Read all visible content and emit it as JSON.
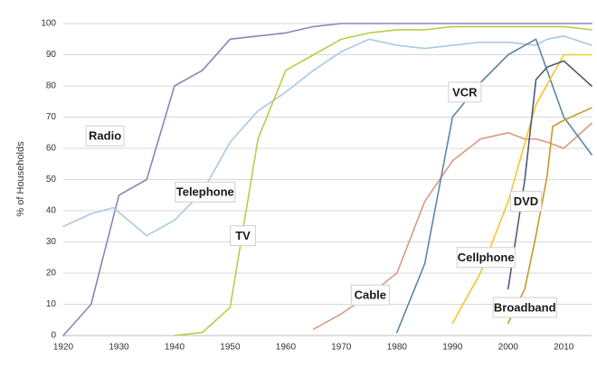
{
  "chart_data": {
    "type": "line",
    "title": "",
    "xlabel": "",
    "ylabel": "% of Households",
    "xlim": [
      1920,
      2015
    ],
    "ylim": [
      0,
      100
    ],
    "xticks": [
      1920,
      1930,
      1940,
      1950,
      1960,
      1970,
      1980,
      1990,
      2000,
      2010
    ],
    "yticks": [
      0,
      10,
      20,
      30,
      40,
      50,
      60,
      70,
      80,
      90,
      100
    ],
    "grid": true,
    "legend": "inline labels",
    "series": [
      {
        "name": "Radio",
        "color": "#8a86b8",
        "points": [
          [
            1920,
            0
          ],
          [
            1925,
            10
          ],
          [
            1930,
            45
          ],
          [
            1935,
            50
          ],
          [
            1940,
            80
          ],
          [
            1945,
            85
          ],
          [
            1950,
            95
          ],
          [
            1955,
            96
          ],
          [
            1960,
            97
          ],
          [
            1965,
            99
          ],
          [
            1970,
            100
          ],
          [
            1980,
            100
          ],
          [
            1990,
            100
          ],
          [
            2000,
            100
          ],
          [
            2010,
            100
          ],
          [
            2015,
            100
          ]
        ]
      },
      {
        "name": "Telephone",
        "color": "#a9c9e3",
        "points": [
          [
            1920,
            35
          ],
          [
            1925,
            39
          ],
          [
            1929,
            41
          ],
          [
            1935,
            32
          ],
          [
            1940,
            37
          ],
          [
            1945,
            46
          ],
          [
            1950,
            62
          ],
          [
            1955,
            72
          ],
          [
            1960,
            78
          ],
          [
            1965,
            85
          ],
          [
            1970,
            91
          ],
          [
            1975,
            95
          ],
          [
            1980,
            93
          ],
          [
            1985,
            92
          ],
          [
            1990,
            93
          ],
          [
            1995,
            94
          ],
          [
            2000,
            94
          ],
          [
            2005,
            93
          ],
          [
            2007,
            95
          ],
          [
            2010,
            96
          ],
          [
            2015,
            93
          ]
        ]
      },
      {
        "name": "TV",
        "color": "#b5cf49",
        "points": [
          [
            1940,
            0
          ],
          [
            1945,
            1
          ],
          [
            1950,
            9
          ],
          [
            1955,
            63
          ],
          [
            1960,
            85
          ],
          [
            1965,
            90
          ],
          [
            1970,
            95
          ],
          [
            1975,
            97
          ],
          [
            1980,
            98
          ],
          [
            1985,
            98
          ],
          [
            1990,
            99
          ],
          [
            2000,
            99
          ],
          [
            2010,
            99
          ],
          [
            2015,
            98
          ]
        ]
      },
      {
        "name": "Cable",
        "color": "#d89a84",
        "points": [
          [
            1965,
            2
          ],
          [
            1970,
            7
          ],
          [
            1975,
            13
          ],
          [
            1980,
            20
          ],
          [
            1985,
            43
          ],
          [
            1990,
            56
          ],
          [
            1995,
            63
          ],
          [
            2000,
            65
          ],
          [
            2003,
            63
          ],
          [
            2005,
            63
          ],
          [
            2007,
            62
          ],
          [
            2010,
            60
          ],
          [
            2015,
            68
          ]
        ]
      },
      {
        "name": "VCR",
        "color": "#5e87a8",
        "points": [
          [
            1980,
            1
          ],
          [
            1985,
            23
          ],
          [
            1990,
            70
          ],
          [
            1995,
            81
          ],
          [
            2000,
            90
          ],
          [
            2005,
            95
          ],
          [
            2007,
            85
          ],
          [
            2010,
            70
          ],
          [
            2015,
            58
          ]
        ]
      },
      {
        "name": "Cellphone",
        "color": "#f7c62b",
        "points": [
          [
            1990,
            4
          ],
          [
            1995,
            20
          ],
          [
            2000,
            43
          ],
          [
            2005,
            74
          ],
          [
            2010,
            90
          ],
          [
            2015,
            90
          ]
        ]
      },
      {
        "name": "DVD",
        "color": "#4f5a78",
        "points": [
          [
            2000,
            15
          ],
          [
            2003,
            50
          ],
          [
            2005,
            82
          ],
          [
            2007,
            86
          ],
          [
            2010,
            88
          ],
          [
            2015,
            80
          ]
        ]
      },
      {
        "name": "Broadband",
        "color": "#c69a28",
        "points": [
          [
            2000,
            4
          ],
          [
            2003,
            15
          ],
          [
            2005,
            32
          ],
          [
            2007,
            51
          ],
          [
            2008,
            67
          ],
          [
            2010,
            69
          ],
          [
            2015,
            73
          ]
        ]
      }
    ],
    "labels": [
      {
        "text": "Radio",
        "x": 1927.5,
        "y": 64,
        "w": 42
      },
      {
        "text": "Telephone",
        "x": 1945.5,
        "y": 46,
        "w": 66
      },
      {
        "text": "TV",
        "x": 1952.3,
        "y": 32,
        "w": 28
      },
      {
        "text": "VCR",
        "x": 1992.2,
        "y": 78,
        "w": 36
      },
      {
        "text": "Cable",
        "x": 1975.2,
        "y": 13,
        "w": 42
      },
      {
        "text": "Cellphone",
        "x": 1996,
        "y": 25,
        "w": 64
      },
      {
        "text": "DVD",
        "x": 2003.2,
        "y": 43,
        "w": 34
      },
      {
        "text": "Broadband",
        "x": 2003,
        "y": 9,
        "w": 70
      }
    ]
  }
}
